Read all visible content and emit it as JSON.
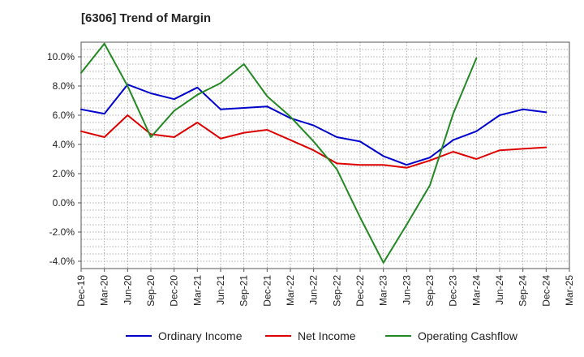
{
  "title": "[6306]  Trend of Margin",
  "chart_data": {
    "type": "line",
    "title": "[6306]  Trend of Margin",
    "xlabel": "",
    "ylabel": "",
    "x": [
      "Dec-19",
      "Mar-20",
      "Jun-20",
      "Sep-20",
      "Dec-20",
      "Mar-21",
      "Jun-21",
      "Sep-21",
      "Dec-21",
      "Mar-22",
      "Jun-22",
      "Sep-22",
      "Dec-22",
      "Mar-23",
      "Jun-23",
      "Sep-23",
      "Dec-23",
      "Mar-24",
      "Jun-24",
      "Sep-24",
      "Dec-24",
      "Mar-25"
    ],
    "ylim": [
      -4.5,
      11.0
    ],
    "yticks": [
      -4.0,
      -2.0,
      0.0,
      2.0,
      4.0,
      6.0,
      8.0,
      10.0
    ],
    "ytick_labels": [
      "-4.0%",
      "-2.0%",
      "0.0%",
      "2.0%",
      "4.0%",
      "6.0%",
      "8.0%",
      "10.0%"
    ],
    "grid": true,
    "legend_position": "bottom",
    "series": [
      {
        "name": "Ordinary Income",
        "color": "#0000cc",
        "values": [
          6.4,
          6.1,
          8.1,
          7.5,
          7.1,
          7.9,
          6.4,
          6.5,
          6.6,
          5.8,
          5.3,
          4.5,
          4.2,
          3.2,
          2.6,
          3.1,
          4.3,
          4.9,
          6.0,
          6.4,
          6.2,
          null
        ]
      },
      {
        "name": "Net Income",
        "color": "#dd0000",
        "values": [
          4.9,
          4.5,
          6.0,
          4.7,
          4.5,
          5.5,
          4.4,
          4.8,
          5.0,
          4.3,
          3.6,
          2.7,
          2.6,
          2.6,
          2.4,
          2.9,
          3.5,
          3.0,
          3.6,
          3.7,
          3.8,
          null
        ]
      },
      {
        "name": "Operating Cashflow",
        "color": "#228822",
        "values": [
          8.9,
          10.9,
          8.0,
          4.5,
          6.3,
          7.4,
          8.2,
          9.5,
          7.3,
          5.9,
          4.2,
          2.3,
          -1.0,
          -4.1,
          -1.5,
          1.2,
          6.1,
          9.9,
          null,
          null,
          null,
          null
        ]
      }
    ]
  }
}
